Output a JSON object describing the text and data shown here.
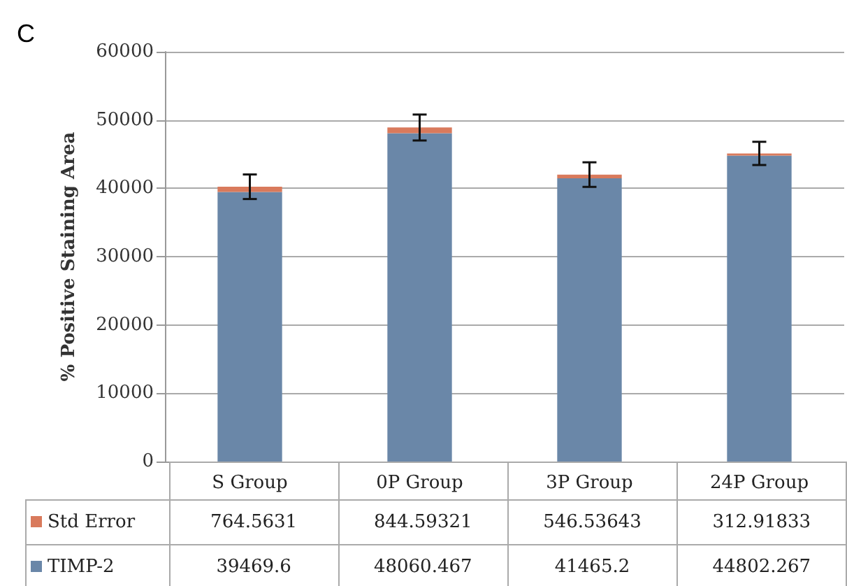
{
  "chart_data": {
    "type": "bar",
    "stacked": true,
    "annotations": [
      "C"
    ],
    "ylabel": "% Positive Staining Area",
    "categories": [
      "S Group",
      "0P Group",
      "3P Group",
      "24P Group"
    ],
    "series": [
      {
        "name": "TIMP-2",
        "color": "#6a87a8",
        "values": [
          39469.6,
          48060.467,
          41465.2,
          44802.267
        ]
      },
      {
        "name": "Std Error",
        "color": "#d97a5c",
        "values": [
          764.5631,
          844.59321,
          546.53643,
          312.91833
        ],
        "errors": [
          1800,
          1900,
          1800,
          1700
        ]
      }
    ],
    "ylim": [
      0,
      60000
    ],
    "yticks": [
      0,
      10000,
      20000,
      30000,
      40000,
      50000,
      60000
    ],
    "grid": "y",
    "legend": "bottom left",
    "data_labels": true
  }
}
